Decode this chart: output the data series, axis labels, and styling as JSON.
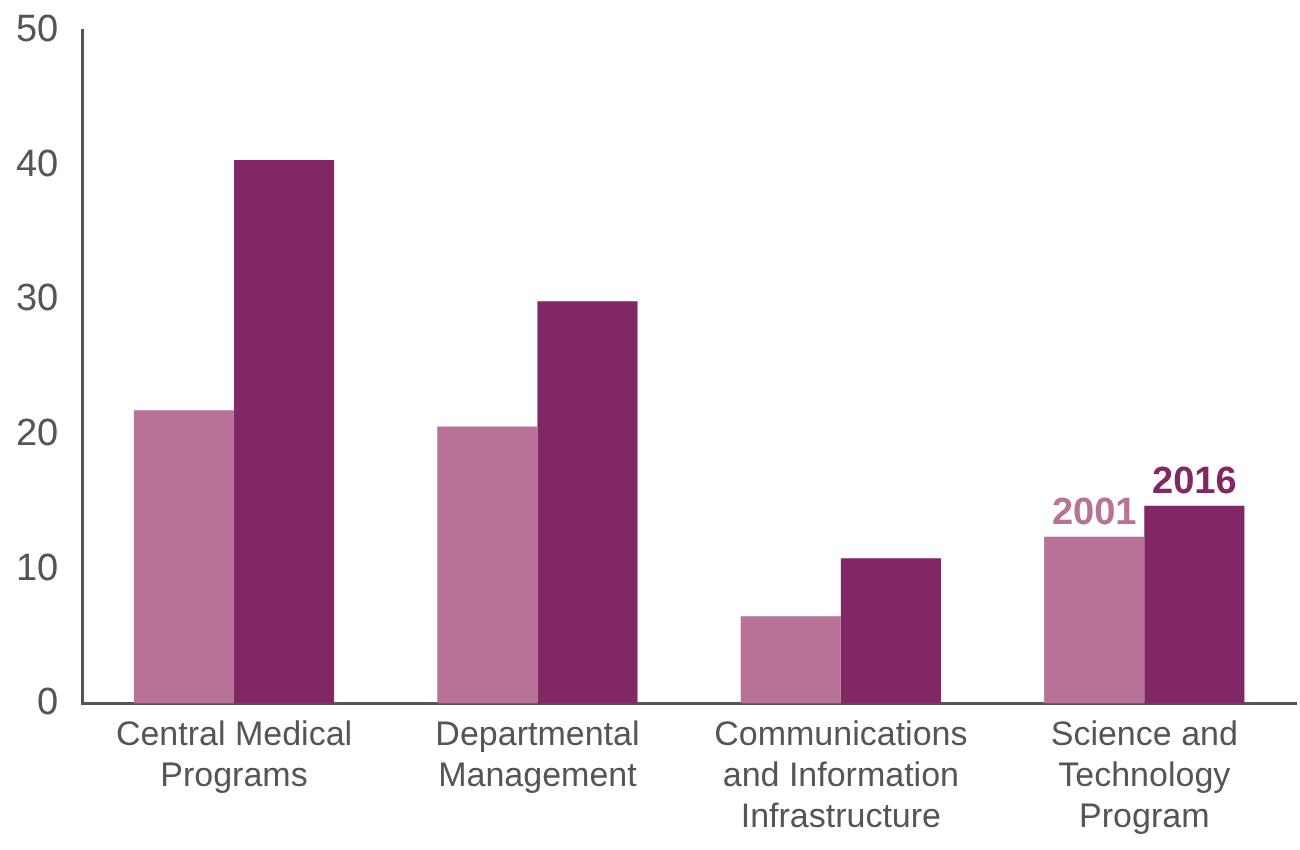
{
  "chart_data": {
    "type": "bar",
    "categories": [
      "Central Medical\nPrograms",
      "Departmental\nManagement",
      "Communications\nand Information\nInfrastructure",
      "Science and\nTechnology\nProgram"
    ],
    "series": [
      {
        "name": "2001",
        "color": "#b87298",
        "values": [
          21.8,
          20.6,
          6.5,
          12.4
        ]
      },
      {
        "name": "2016",
        "color": "#822766",
        "values": [
          40.4,
          29.9,
          10.8,
          14.7
        ]
      }
    ],
    "ylim": [
      0,
      50
    ],
    "yticks": [
      0,
      10,
      20,
      30,
      40,
      50
    ],
    "grid": false,
    "legend": false
  }
}
